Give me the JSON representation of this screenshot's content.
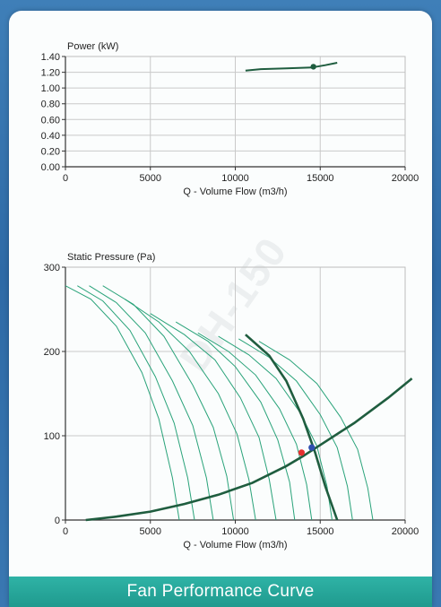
{
  "footer": {
    "title": "Fan Performance Curve"
  },
  "watermark": {
    "text": "DH-150"
  },
  "colors": {
    "operating_curve": "#1f5d3f",
    "fan_curves": "#2aa37a",
    "red_point": "#e53030",
    "blue_point": "#2f4fb0"
  },
  "chart_data": [
    {
      "type": "line",
      "title": "",
      "ylabel": "Power (kW)",
      "xlabel": "Q - Volume Flow (m3/h)",
      "xlim": [
        0,
        20000
      ],
      "ylim": [
        0,
        1.4
      ],
      "xticks": [
        "0",
        "5000",
        "10000",
        "15000",
        "20000"
      ],
      "yticks": [
        "0.00",
        "0.20",
        "0.40",
        "0.60",
        "0.80",
        "1.00",
        "1.20",
        "1.40"
      ],
      "grid": true,
      "series": [
        {
          "x": [
            10600,
            11500,
            13000,
            14500,
            15300,
            16000
          ],
          "y": [
            1.22,
            1.24,
            1.25,
            1.26,
            1.29,
            1.32
          ]
        }
      ],
      "points": [
        {
          "x": 14600,
          "y": 1.27
        }
      ]
    },
    {
      "type": "line",
      "title": "",
      "ylabel": "Static Pressure (Pa)",
      "xlabel": "Q - Volume Flow (m3/h)",
      "xlim": [
        0,
        20000
      ],
      "ylim": [
        0,
        300
      ],
      "xticks": [
        "0",
        "5000",
        "10000",
        "15000",
        "20000"
      ],
      "yticks": [
        "0",
        "100",
        "200",
        "300"
      ],
      "grid": true,
      "system_curve": {
        "x": [
          1200,
          3000,
          5000,
          7000,
          9000,
          11000,
          13000,
          14000,
          15000,
          17000,
          19000,
          20400
        ],
        "y": [
          0,
          4,
          10,
          19,
          30,
          44,
          64,
          76,
          89,
          115,
          145,
          168
        ]
      },
      "operating_curve": {
        "x": [
          10600,
          12000,
          13000,
          14000,
          14700,
          15300,
          16000
        ],
        "y": [
          220,
          195,
          165,
          120,
          80,
          40,
          0
        ]
      },
      "fan_curves": [
        {
          "x": [
            0,
            1500,
            3000,
            4500,
            5500,
            6300,
            6700
          ],
          "y": [
            278,
            262,
            230,
            175,
            120,
            50,
            0
          ]
        },
        {
          "x": [
            700,
            2200,
            3800,
            5300,
            6400,
            7200,
            7600
          ],
          "y": [
            278,
            260,
            225,
            170,
            115,
            50,
            0
          ]
        },
        {
          "x": [
            1400,
            3000,
            4700,
            6300,
            7500,
            8300,
            8700
          ],
          "y": [
            278,
            258,
            222,
            165,
            112,
            50,
            0
          ]
        },
        {
          "x": [
            2200,
            4000,
            5800,
            7500,
            8700,
            9500,
            9900
          ],
          "y": [
            278,
            256,
            218,
            160,
            110,
            52,
            0
          ]
        },
        {
          "x": [
            3500,
            5500,
            7300,
            9000,
            10100,
            10800,
            11200
          ],
          "y": [
            262,
            235,
            200,
            150,
            102,
            48,
            0
          ]
        },
        {
          "x": [
            5000,
            7000,
            8800,
            10300,
            11400,
            12000,
            12400
          ],
          "y": [
            245,
            220,
            190,
            145,
            98,
            48,
            0
          ]
        },
        {
          "x": [
            6500,
            8400,
            10000,
            11500,
            12500,
            13200,
            13500
          ],
          "y": [
            235,
            212,
            182,
            140,
            95,
            45,
            0
          ]
        },
        {
          "x": [
            7800,
            9600,
            11200,
            12600,
            13600,
            14200,
            14500
          ],
          "y": [
            222,
            200,
            172,
            132,
            90,
            42,
            0
          ]
        },
        {
          "x": [
            9000,
            10800,
            12400,
            13800,
            14800,
            15400,
            15700
          ],
          "y": [
            218,
            196,
            168,
            128,
            88,
            40,
            0
          ]
        },
        {
          "x": [
            10200,
            12000,
            13600,
            15000,
            16000,
            16600,
            16900
          ],
          "y": [
            215,
            193,
            165,
            125,
            86,
            40,
            0
          ]
        },
        {
          "x": [
            11400,
            13200,
            14800,
            16200,
            17200,
            17800,
            18100
          ],
          "y": [
            212,
            190,
            162,
            122,
            84,
            38,
            0
          ]
        }
      ],
      "points": [
        {
          "x": 13900,
          "y": 80,
          "color": "#e53030"
        },
        {
          "x": 14500,
          "y": 86,
          "color": "#2f4fb0"
        }
      ]
    }
  ]
}
